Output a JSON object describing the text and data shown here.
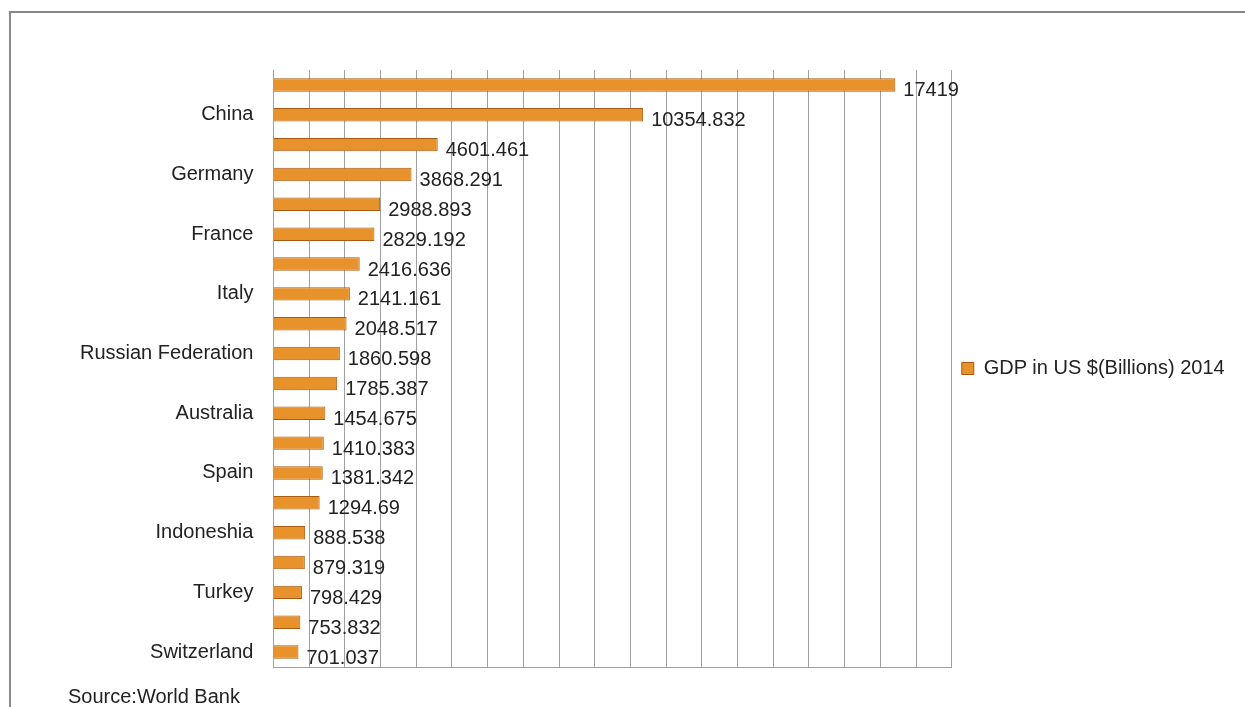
{
  "chart_data": {
    "type": "bar",
    "orientation": "horizontal",
    "categories": [
      null,
      "China",
      null,
      "Germany",
      null,
      "France",
      null,
      "Italy",
      null,
      "Russian Federation",
      null,
      "Australia",
      null,
      "Spain",
      null,
      "Indoneshia",
      null,
      "Turkey",
      null,
      "Switzerland"
    ],
    "series": [
      {
        "name": "GDP in US $(Billions) 2014",
        "color": "#e8922c",
        "values": [
          17419,
          10354.832,
          4601.461,
          3868.291,
          2988.893,
          2829.192,
          2416.636,
          2141.161,
          2048.517,
          1860.598,
          1785.387,
          1454.675,
          1410.383,
          1381.342,
          1294.69,
          888.538,
          879.319,
          798.429,
          753.832,
          701.037
        ]
      }
    ],
    "xlim": [
      0,
      19000
    ],
    "xticks": [
      {
        "value": 0,
        "label": null
      },
      {
        "value": 1000,
        "label": null
      },
      {
        "value": 2000,
        "label": null
      },
      {
        "value": 3000,
        "label": null
      },
      {
        "value": 4000,
        "label": null
      },
      {
        "value": 5000,
        "label": null
      },
      {
        "value": 6000,
        "label": null
      },
      {
        "value": 7000,
        "label": null
      },
      {
        "value": 8000,
        "label": null
      },
      {
        "value": 9000,
        "label": null
      },
      {
        "value": 10000,
        "label": null
      },
      {
        "value": 11000,
        "label": null
      },
      {
        "value": 12000,
        "label": null
      },
      {
        "value": 13000,
        "label": null
      },
      {
        "value": 14000,
        "label": null
      },
      {
        "value": 15000,
        "label": null
      },
      {
        "value": 16000,
        "label": null
      },
      {
        "value": 17000,
        "label": null
      },
      {
        "value": 18000,
        "label": null
      },
      {
        "value": 19000,
        "label": null
      }
    ],
    "tick_labels": "y",
    "grid": "x",
    "legend": "right",
    "data_labels": true,
    "annotations": [
      "Source:World Bank"
    ]
  }
}
